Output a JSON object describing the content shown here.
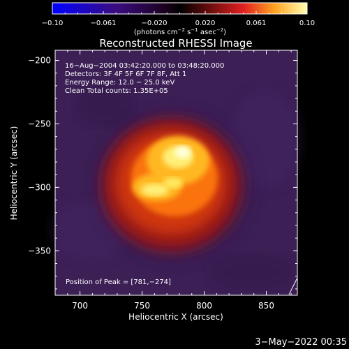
{
  "colorbar": {
    "ticks": [
      "−0.10",
      "−0.061",
      "−0.020",
      "0.020",
      "0.061",
      "0.10"
    ],
    "unit_prefix": "(photons cm",
    "unit_sup1": "−2",
    "unit_mid": " s",
    "unit_sup2": "−1",
    "unit_mid2": " asec",
    "unit_sup3": "−2",
    "unit_suffix": ")"
  },
  "plot": {
    "title": "Reconstructed RHESSI Image",
    "info_lines": [
      "16−Aug−2004 03:42:20.000 to 03:48:20.000",
      "Detectors: 3F 4F 5F 6F 7F 8F, Att 1",
      "Energy Range: 12.0 − 25.0 keV",
      "Clean    Total counts: 1.35E+05"
    ],
    "peak_label": "Position of Peak = [781,−274]",
    "xlabel": "Heliocentric X (arcsec)",
    "ylabel": "Heliocentric Y (arcsec)",
    "xticks": [
      "700",
      "750",
      "800",
      "850"
    ],
    "yticks": [
      "−200",
      "−250",
      "−300",
      "−350"
    ],
    "xlim": [
      680,
      875
    ],
    "ylim": [
      -385,
      -192
    ],
    "x_tick_values": [
      700,
      750,
      800,
      850
    ],
    "y_tick_values": [
      -200,
      -250,
      -300,
      -350
    ]
  },
  "footer": {
    "timestamp": "3−May−2022 00:35"
  }
}
